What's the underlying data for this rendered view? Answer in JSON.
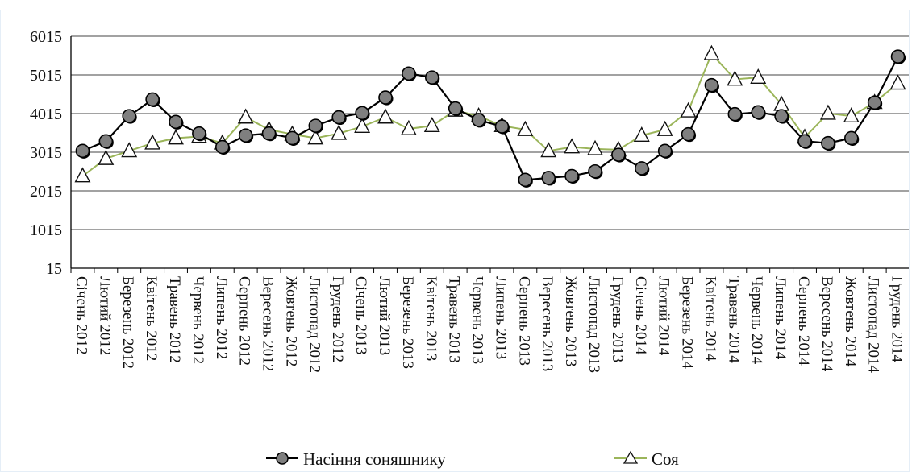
{
  "chart_data": {
    "type": "line",
    "categories": [
      "Січень 2012",
      "Лютий 2012",
      "Березень 2012",
      "Квітень 2012",
      "Травень 2012",
      "Червень 2012",
      "Липень 2012",
      "Серпень 2012",
      "Вересень 2012",
      "Жовтень 2012",
      "Листопад 2012",
      "Грудень 2012",
      "Січень 2013",
      "Лютий 2013",
      "Березень 2013",
      "Квітень 2013",
      "Травень 2013",
      "Червень 2013",
      "Липень 2013",
      "Серпень 2013",
      "Вересень 2013",
      "Жовтень 2013",
      "Листопад 2013",
      "Грудень 2013",
      "Січень 2014",
      "Лютий 2014",
      "Березень 2014",
      "Квітень 2014",
      "Травень 2014",
      "Червень 2014",
      "Липень 2014",
      "Серпень 2014",
      "Вересень 2014",
      "Жовтень 2014",
      "Листопад 2014",
      "Грудень 2014"
    ],
    "yticks": [
      15,
      1015,
      2015,
      3015,
      4015,
      5015,
      6015
    ],
    "ylim": [
      15,
      6015
    ],
    "grid": true,
    "legend_position": "bottom",
    "series": [
      {
        "name": "Насіння соняшнику",
        "color": "#000000",
        "marker": "circle",
        "marker_fill": "#7f7f7f",
        "values": [
          3050,
          3300,
          3950,
          4380,
          3800,
          3500,
          3150,
          3450,
          3500,
          3380,
          3700,
          3920,
          4030,
          4430,
          5050,
          4950,
          4150,
          3850,
          3680,
          2300,
          2350,
          2400,
          2520,
          2950,
          2600,
          3050,
          3480,
          4750,
          4000,
          4050,
          3950,
          3300,
          3250,
          3380,
          4300,
          5490
        ]
      },
      {
        "name": "Соя",
        "color": "#9bb55a",
        "marker": "triangle",
        "marker_fill": "#ffffff",
        "values": [
          2400,
          2850,
          3050,
          3250,
          3380,
          3420,
          3250,
          3920,
          3600,
          3480,
          3380,
          3500,
          3680,
          3920,
          3620,
          3700,
          4100,
          3950,
          3700,
          3600,
          3050,
          3150,
          3100,
          3080,
          3450,
          3600,
          4080,
          5560,
          4900,
          4950,
          4250,
          3400,
          4020,
          3950,
          4300,
          4800
        ]
      }
    ]
  }
}
